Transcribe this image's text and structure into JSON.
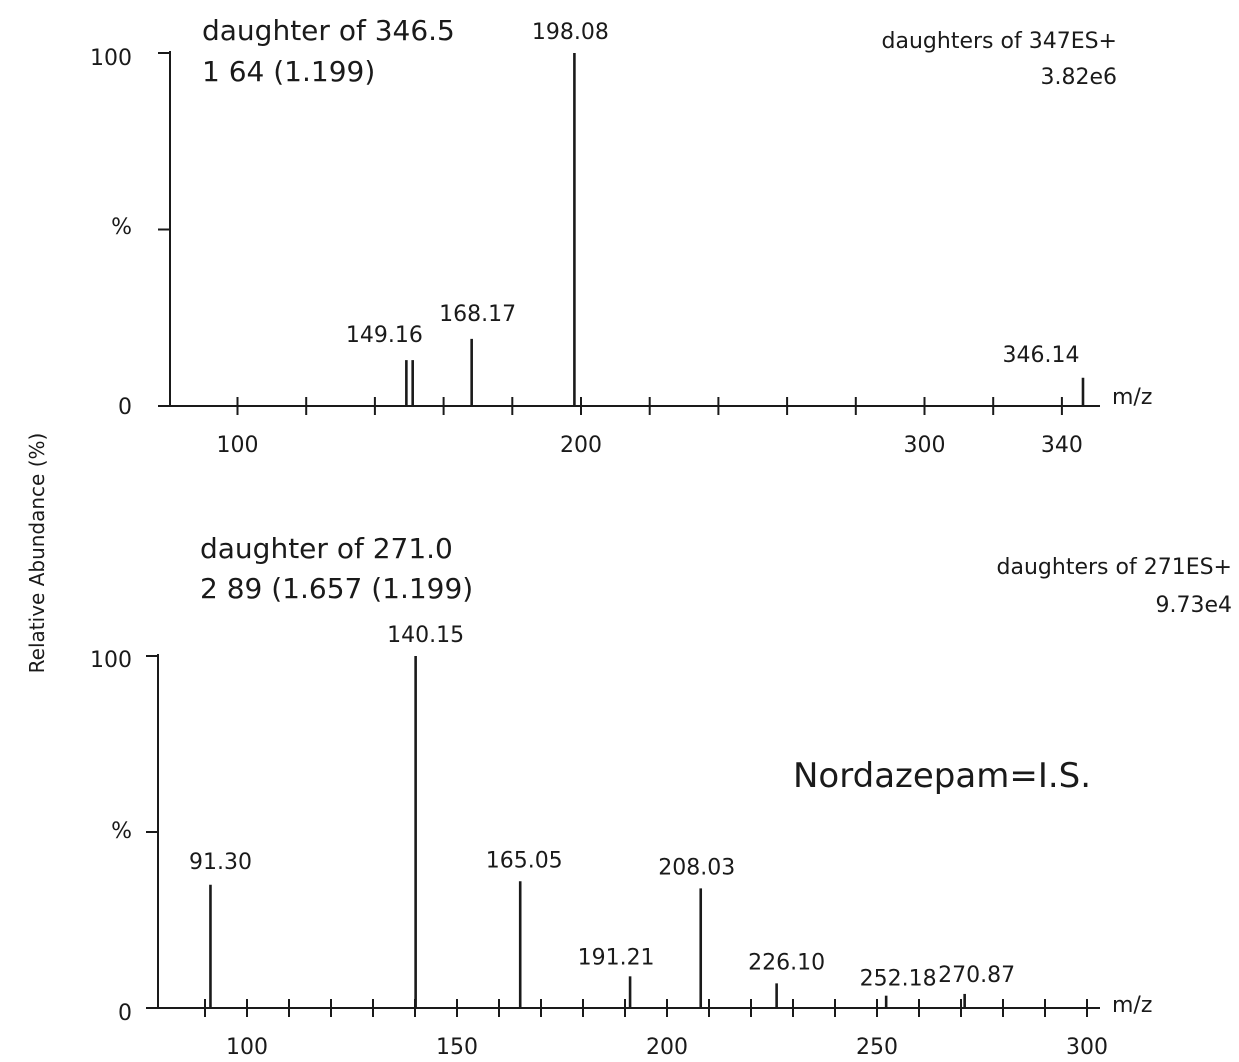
{
  "figure": {
    "shared_ylabel": "Relative Abundance (%)"
  },
  "chart_data": [
    {
      "type": "bar",
      "info_left": [
        "daughter of 346.5",
        "1 64 (1.199)"
      ],
      "info_right": [
        "daughters of 347ES+",
        "3.82e6"
      ],
      "xlabel": "m/z",
      "ylabel": "%",
      "xlim": [
        80,
        345
      ],
      "ylim": [
        0,
        100
      ],
      "x_major_ticks": [
        100,
        200,
        300,
        340
      ],
      "x_minor_ticks": [
        120,
        140,
        160,
        180,
        220,
        240,
        260,
        280,
        320
      ],
      "y_tick_labels": [
        "0",
        "%",
        "100"
      ],
      "peaks": [
        {
          "x": 149.16,
          "y": 13,
          "label": "149.16"
        },
        {
          "x": 151.0,
          "y": 13,
          "label": ""
        },
        {
          "x": 168.17,
          "y": 19,
          "label": "168.17"
        },
        {
          "x": 198.08,
          "y": 100,
          "label": "198.08"
        },
        {
          "x": 346.14,
          "y": 8,
          "label": "346.14"
        }
      ]
    },
    {
      "type": "bar",
      "info_left": [
        "daughter of 271.0",
        "2 89 (1.657 (1.199)"
      ],
      "info_right": [
        "daughters of 271ES+",
        "9.73e4"
      ],
      "annotation": "Nordazepam=I.S.",
      "xlabel": "m/z",
      "ylabel": "%",
      "xlim": [
        80,
        300
      ],
      "ylim": [
        0,
        100
      ],
      "x_major_ticks": [
        100,
        150,
        200,
        250,
        300
      ],
      "x_minor_ticks": [
        90,
        110,
        120,
        130,
        140,
        160,
        170,
        180,
        190,
        210,
        220,
        230,
        240,
        260,
        270,
        280,
        290
      ],
      "y_tick_labels": [
        "0",
        "%",
        "100"
      ],
      "peaks": [
        {
          "x": 91.3,
          "y": 35,
          "label": "91.30"
        },
        {
          "x": 140.15,
          "y": 100,
          "label": "140.15"
        },
        {
          "x": 165.05,
          "y": 36,
          "label": "165.05"
        },
        {
          "x": 191.21,
          "y": 9,
          "label": "191.21"
        },
        {
          "x": 208.03,
          "y": 34,
          "label": "208.03"
        },
        {
          "x": 226.1,
          "y": 7,
          "label": "226.10"
        },
        {
          "x": 252.18,
          "y": 3.5,
          "label": "252.18"
        },
        {
          "x": 270.87,
          "y": 4,
          "label": "270.87"
        }
      ]
    }
  ]
}
